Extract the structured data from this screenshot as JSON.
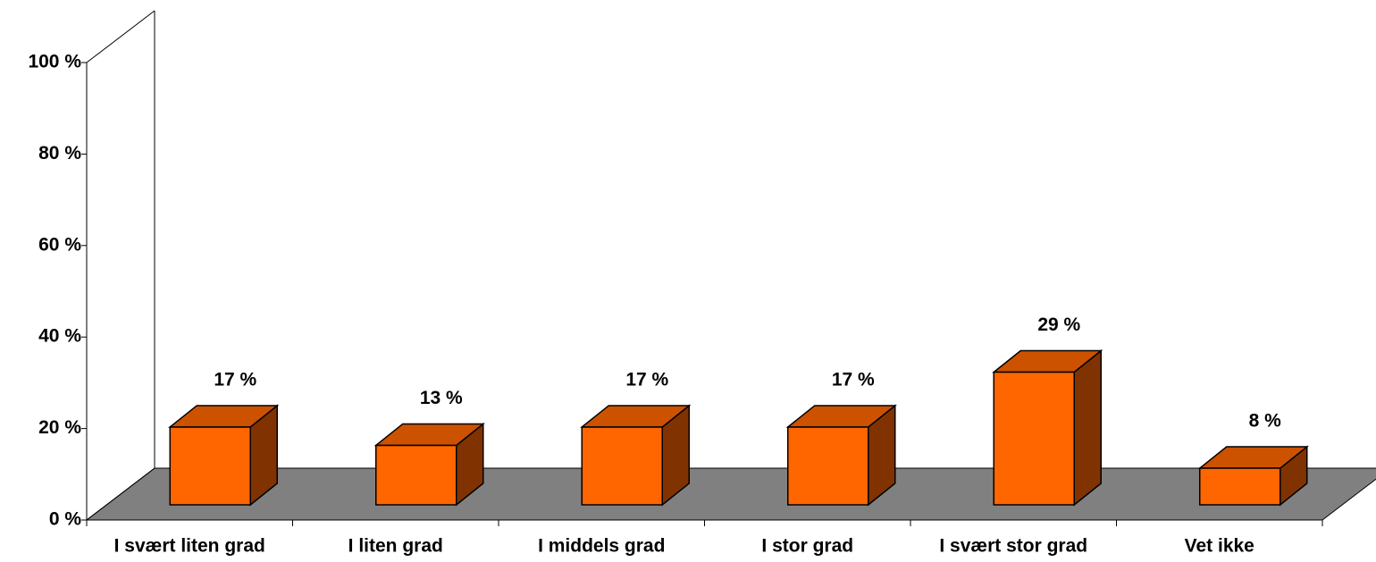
{
  "chart_data": {
    "type": "bar3d",
    "categories": [
      "I svært liten grad",
      "I liten grad",
      "I middels grad",
      "I stor grad",
      "I svært stor grad",
      "Vet ikke"
    ],
    "values": [
      17,
      13,
      17,
      17,
      29,
      8
    ],
    "value_labels": [
      "17 %",
      "13 %",
      "17 %",
      "17 %",
      "29 %",
      "8 %"
    ],
    "color": "#ff6600",
    "ylim": [
      0,
      100
    ],
    "yticks": [
      {
        "value": 0,
        "label": "0 %"
      },
      {
        "value": 20,
        "label": "20 %"
      },
      {
        "value": 40,
        "label": "40 %"
      },
      {
        "value": 60,
        "label": "60 %"
      },
      {
        "value": 80,
        "label": "80 %"
      },
      {
        "value": 100,
        "label": "100 %"
      }
    ]
  }
}
